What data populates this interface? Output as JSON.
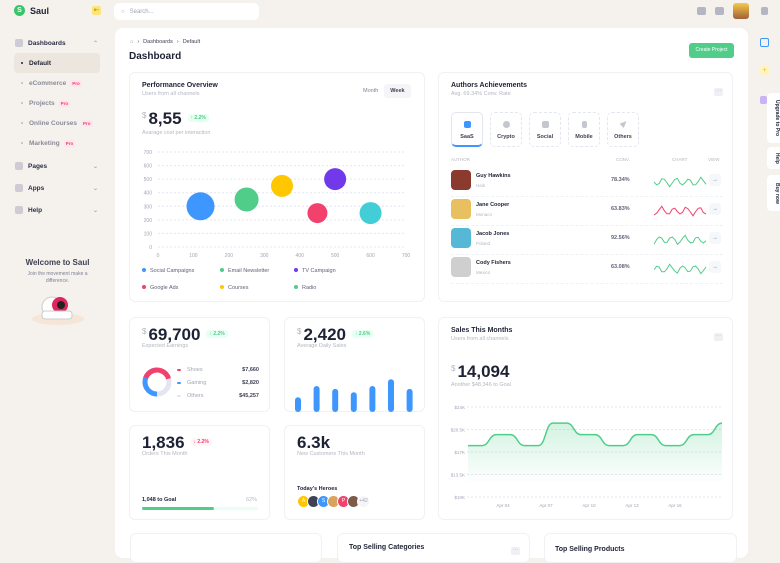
{
  "app": {
    "name": "Saul",
    "logo_letter": "S"
  },
  "search": {
    "placeholder": "Search..."
  },
  "sidebar": {
    "dashboards": "Dashboards",
    "items": [
      {
        "label": "Default",
        "active": true
      },
      {
        "label": "eCommerce",
        "pro": "Pro"
      },
      {
        "label": "Projects",
        "pro": "Pro"
      },
      {
        "label": "Online Courses",
        "pro": "Pro"
      },
      {
        "label": "Marketing",
        "pro": "Pro"
      }
    ],
    "pages": "Pages",
    "apps": "Apps",
    "help": "Help",
    "welcome": {
      "title": "Welcome to Saul",
      "text": "Join the movement make a difference."
    }
  },
  "breadcrumb": [
    "Dashboards",
    "Default"
  ],
  "page_title": "Dashboard",
  "create_project": "Create Project",
  "performance": {
    "title": "Performance Overview",
    "subtitle": "Users from all channels",
    "toggle": [
      "Month",
      "Week"
    ],
    "currency": "$",
    "value": "8,55",
    "badge": "↑ 2.2%",
    "caption": "Avarage cost per interaction",
    "chart_data": {
      "type": "scatter",
      "xlim": [
        0,
        700
      ],
      "ylim": [
        0,
        700
      ],
      "xticks": [
        0,
        100,
        200,
        300,
        400,
        500,
        600,
        700
      ],
      "yticks": [
        0,
        100,
        200,
        300,
        400,
        500,
        600,
        700
      ],
      "grid": true,
      "legend": "bottom",
      "series": [
        {
          "name": "Social Campaigns",
          "x": 120,
          "y": 300,
          "size": 14,
          "color": "#3e97ff"
        },
        {
          "name": "Email Newsletter",
          "x": 250,
          "y": 350,
          "size": 12,
          "color": "#50cd89"
        },
        {
          "name": "TV Campaign",
          "x": 500,
          "y": 500,
          "size": 11,
          "color": "#7239ea"
        },
        {
          "name": "Google Ads",
          "x": 450,
          "y": 250,
          "size": 10,
          "color": "#f1416c"
        },
        {
          "name": "Courses",
          "x": 350,
          "y": 450,
          "size": 11,
          "color": "#ffc700"
        },
        {
          "name": "Radio",
          "x": 600,
          "y": 250,
          "size": 11,
          "color": "#43ced7",
          "legend_color": "#50cd89"
        }
      ]
    }
  },
  "authors": {
    "title": "Authors Achievements",
    "subtitle": "Avg. 69.34% Conv. Rate",
    "tabs": [
      "SaaS",
      "Crypto",
      "Social",
      "Mobile",
      "Others"
    ],
    "columns": [
      "AUTHOR",
      "CONV.",
      "CHART",
      "VIEW"
    ],
    "rows": [
      {
        "name": "Guy Hawkins",
        "country": "Haiti",
        "conv": "78.34%",
        "trend": "up",
        "color": "#50cd89"
      },
      {
        "name": "Jane Cooper",
        "country": "Monaco",
        "conv": "63.83%",
        "trend": "down",
        "color": "#f1416c"
      },
      {
        "name": "Jacob Jones",
        "country": "Poland",
        "conv": "92.56%",
        "trend": "up",
        "color": "#50cd89"
      },
      {
        "name": "Cody Fishers",
        "country": "Mexico",
        "conv": "63.08%",
        "trend": "up",
        "color": "#50cd89"
      }
    ]
  },
  "earnings": {
    "currency": "$",
    "value": "69,700",
    "badge": "↑ 2.2%",
    "caption": "Expected Earnings",
    "items": [
      {
        "label": "Shoes",
        "value": "$7,660",
        "color": "#f1416c"
      },
      {
        "label": "Gaming",
        "value": "$2,820",
        "color": "#3e97ff"
      },
      {
        "label": "Others",
        "value": "$45,257",
        "color": "#e4e6ef"
      }
    ]
  },
  "daily_sales": {
    "currency": "$",
    "value": "2,420",
    "badge": "↑ 2.6%",
    "caption": "Average Daily Sales",
    "chart_data": {
      "type": "bar",
      "values": [
        35,
        62,
        55,
        47,
        62,
        78,
        55
      ]
    }
  },
  "orders": {
    "value": "1,836",
    "badge": "↓ 2.2%",
    "caption": "Orders This Month",
    "goal": "1,048 to Goal",
    "percent_label": "62%",
    "progress": 62
  },
  "customers": {
    "value": "6.3k",
    "caption": "New Customers This Month",
    "heroes_title": "Today's Heroes",
    "heroes": [
      {
        "initial": "A",
        "color": "#ffc700"
      },
      {
        "initial": "",
        "color": "#3f4254"
      },
      {
        "initial": "S",
        "color": "#3e97ff"
      },
      {
        "initial": "",
        "color": "#d9a35b"
      },
      {
        "initial": "P",
        "color": "#f1416c"
      },
      {
        "initial": "",
        "color": "#7e5a4a"
      }
    ],
    "more": "+42"
  },
  "sales_month": {
    "title": "Sales This Months",
    "subtitle": "Users from all channels",
    "currency": "$",
    "value": "14,094",
    "caption": "Another $48,346 to Goal",
    "chart_data": {
      "type": "area",
      "ylim": [
        10,
        24
      ],
      "yticks": [
        "$10K",
        "$13.5K",
        "$17K",
        "$20.5K",
        "$24K"
      ],
      "xticks": [
        "Apr 04",
        "Apr 07",
        "Apr 10",
        "Apr 13",
        "Apr 16"
      ],
      "color": "#50cd89",
      "values": [
        18,
        18,
        19.7,
        19.7,
        18,
        18,
        21.5,
        21.5,
        19.7,
        19.7,
        18,
        18,
        19.7,
        19.7,
        18,
        18,
        19.7,
        19.7,
        21.5
      ]
    }
  },
  "bottom": {
    "categories_title": "Top Selling Categories",
    "products_title": "Top Selling Products"
  },
  "rail": {
    "upgrade": "Upgrade to Pro",
    "help": "Help",
    "buy": "Buy now"
  }
}
